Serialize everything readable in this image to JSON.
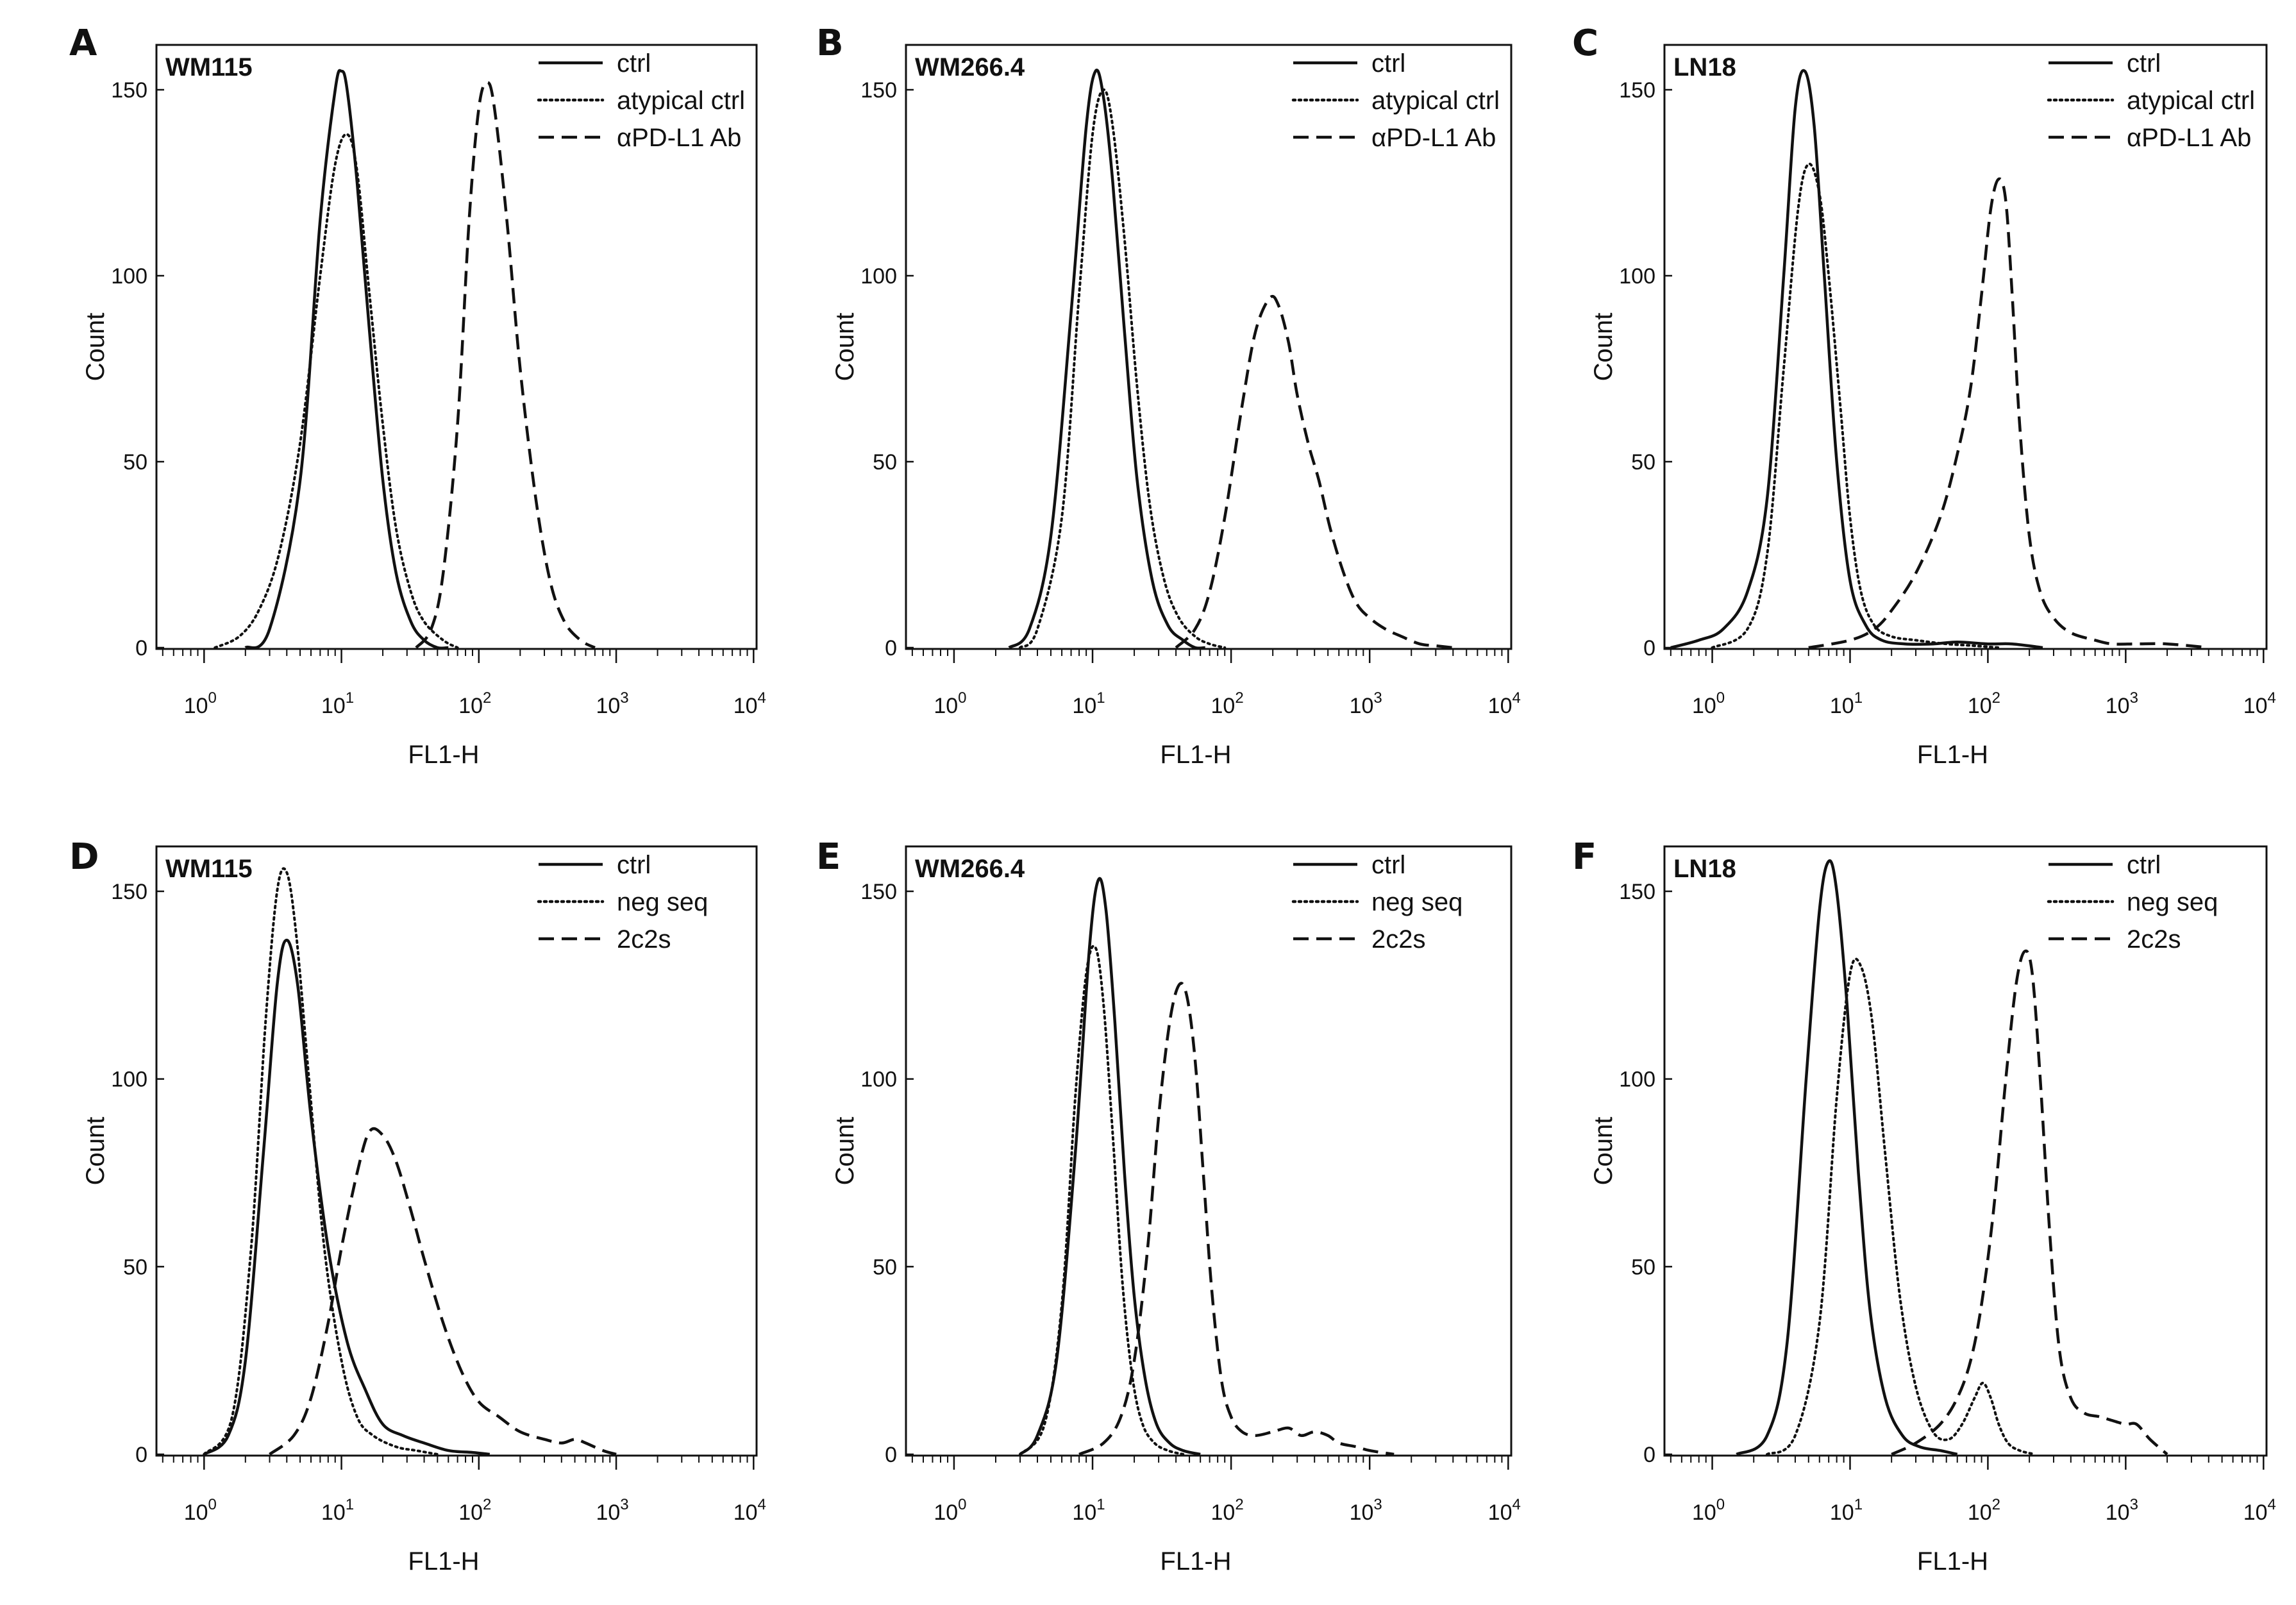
{
  "figure": {
    "axis_style": {
      "frame_color": "#111111",
      "curve_color": "#111111"
    }
  },
  "chart_data": [
    {
      "type": "line",
      "panel": "A",
      "title": "WM115",
      "xlabel": "FL1-H",
      "ylabel": "Count",
      "xscale": "log",
      "xlim": [
        0.45,
        10000
      ],
      "ylim": [
        0,
        165
      ],
      "x_ticks": [
        "10^0",
        "10^1",
        "10^2",
        "10^3",
        "10^4"
      ],
      "y_ticks": [
        0,
        50,
        100,
        150
      ],
      "legend_position": "top-right",
      "series": [
        {
          "name": "ctrl",
          "style": "solid",
          "x": [
            2,
            3,
            5,
            7,
            9,
            10,
            11,
            13,
            16,
            20,
            25,
            32,
            40,
            50,
            60
          ],
          "y": [
            0,
            5,
            45,
            115,
            150,
            155,
            150,
            125,
            85,
            45,
            20,
            7,
            2,
            0,
            0
          ]
        },
        {
          "name": "atypical ctrl",
          "style": "dotted",
          "x": [
            1.2,
            1.8,
            2.5,
            3.5,
            5,
            7,
            9,
            11,
            13,
            16,
            20,
            25,
            32,
            40,
            55,
            70
          ],
          "y": [
            0,
            3,
            10,
            25,
            55,
            100,
            130,
            138,
            128,
            95,
            60,
            32,
            15,
            7,
            2,
            0
          ]
        },
        {
          "name": "αPD-L1 Ab",
          "style": "dashed",
          "x": [
            35,
            45,
            55,
            70,
            85,
            100,
            115,
            130,
            160,
            200,
            260,
            330,
            420,
            550,
            700
          ],
          "y": [
            0,
            5,
            20,
            60,
            115,
            145,
            152,
            145,
            115,
            75,
            40,
            18,
            7,
            2,
            0
          ]
        }
      ],
      "layout_key": "A"
    },
    {
      "type": "line",
      "panel": "B",
      "title": "WM266.4",
      "xlabel": "FL1-H",
      "ylabel": "Count",
      "xscale": "log",
      "xlim": [
        0.45,
        10000
      ],
      "ylim": [
        0,
        165
      ],
      "x_ticks": [
        "10^0",
        "10^1",
        "10^2",
        "10^3",
        "10^4"
      ],
      "y_ticks": [
        0,
        50,
        100,
        150
      ],
      "legend_position": "top-right",
      "series": [
        {
          "name": "ctrl",
          "style": "solid",
          "x": [
            2.5,
            3.5,
            5,
            7,
            9,
            10.5,
            12,
            14,
            17,
            21,
            27,
            35,
            45,
            55,
            65
          ],
          "y": [
            0,
            5,
            30,
            90,
            140,
            155,
            148,
            125,
            85,
            45,
            18,
            6,
            2,
            0,
            0
          ]
        },
        {
          "name": "atypical ctrl",
          "style": "dotted",
          "x": [
            3,
            4,
            6,
            8,
            10,
            12,
            14,
            17,
            21,
            26,
            33,
            42,
            55,
            70,
            90
          ],
          "y": [
            0,
            5,
            35,
            95,
            138,
            150,
            140,
            110,
            70,
            38,
            18,
            8,
            3,
            1,
            0
          ]
        },
        {
          "name": "αPD-L1 Ab",
          "style": "dashed",
          "x": [
            40,
            55,
            70,
            90,
            120,
            150,
            190,
            220,
            260,
            300,
            360,
            430,
            520,
            650,
            800,
            1000,
            1300,
            1700,
            2300,
            3000,
            4000
          ],
          "y": [
            0,
            5,
            15,
            35,
            65,
            85,
            94,
            92,
            82,
            68,
            55,
            45,
            32,
            20,
            12,
            8,
            5,
            3,
            1,
            0.5,
            0
          ]
        }
      ],
      "layout_key": "B"
    },
    {
      "type": "line",
      "panel": "C",
      "title": "LN18",
      "xlabel": "FL1-H",
      "ylabel": "Count",
      "xscale": "log",
      "xlim": [
        0.45,
        10000
      ],
      "ylim": [
        0,
        165
      ],
      "x_ticks": [
        "10^0",
        "10^1",
        "10^2",
        "10^3",
        "10^4"
      ],
      "y_ticks": [
        0,
        50,
        100,
        150
      ],
      "legend_position": "top-right",
      "series": [
        {
          "name": "ctrl",
          "style": "solid",
          "x": [
            0.5,
            0.8,
            1.2,
            1.8,
            2.5,
            3.3,
            4,
            4.7,
            5.5,
            6.5,
            8,
            10,
            13,
            17,
            25,
            40,
            60,
            100,
            150,
            250
          ],
          "y": [
            0,
            2,
            5,
            15,
            40,
            100,
            145,
            155,
            140,
            100,
            50,
            18,
            6,
            2,
            1,
            1,
            1.5,
            1,
            1,
            0
          ]
        },
        {
          "name": "atypical ctrl",
          "style": "dotted",
          "x": [
            1,
            1.8,
            2.5,
            3.3,
            4.2,
            5,
            6,
            7,
            8.5,
            10,
            12,
            15,
            20,
            30,
            50,
            80,
            120
          ],
          "y": [
            0,
            5,
            25,
            75,
            118,
            130,
            122,
            100,
            65,
            35,
            15,
            6,
            3,
            2,
            1,
            0.5,
            0
          ]
        },
        {
          "name": "αPD-L1 Ab",
          "style": "dashed",
          "x": [
            5,
            10,
            15,
            20,
            30,
            45,
            60,
            75,
            90,
            105,
            120,
            135,
            150,
            170,
            200,
            240,
            300,
            400,
            600,
            800,
            1200,
            2000,
            4000
          ],
          "y": [
            0,
            2,
            5,
            10,
            20,
            35,
            52,
            70,
            95,
            118,
            126,
            120,
            95,
            60,
            30,
            15,
            8,
            4,
            2,
            1,
            1,
            1,
            0
          ]
        }
      ],
      "layout_key": "C"
    },
    {
      "type": "line",
      "panel": "D",
      "title": "WM115",
      "xlabel": "FL1-H",
      "ylabel": "Count",
      "xscale": "log",
      "xlim": [
        0.45,
        10000
      ],
      "ylim": [
        0,
        165
      ],
      "x_ticks": [
        "10^0",
        "10^1",
        "10^2",
        "10^3",
        "10^4"
      ],
      "y_ticks": [
        0,
        50,
        100,
        150
      ],
      "legend_position": "top-right",
      "series": [
        {
          "name": "ctrl",
          "style": "solid",
          "x": [
            1,
            1.5,
            2,
            2.7,
            3.4,
            4,
            4.8,
            6,
            8,
            11,
            15,
            20,
            28,
            40,
            60,
            90,
            120
          ],
          "y": [
            0,
            5,
            25,
            80,
            125,
            137,
            125,
            90,
            55,
            30,
            17,
            8,
            5,
            3,
            1,
            0.5,
            0
          ]
        },
        {
          "name": "neg seq",
          "style": "dotted",
          "x": [
            1,
            1.6,
            2.2,
            2.8,
            3.4,
            4,
            4.7,
            5.8,
            7.5,
            10,
            13,
            17,
            25,
            35,
            50
          ],
          "y": [
            0,
            10,
            55,
            115,
            150,
            155,
            138,
            100,
            55,
            25,
            10,
            5,
            2,
            1,
            0
          ]
        },
        {
          "name": "2c2s",
          "style": "dashed",
          "x": [
            3,
            4.5,
            6,
            8,
            10,
            13,
            16,
            20,
            25,
            32,
            40,
            55,
            75,
            100,
            140,
            200,
            300,
            400,
            500,
            600,
            800,
            1000
          ],
          "y": [
            0,
            5,
            15,
            35,
            55,
            75,
            86,
            85,
            78,
            65,
            52,
            35,
            22,
            14,
            10,
            6,
            4,
            3,
            4,
            3,
            1,
            0
          ]
        }
      ],
      "layout_key": "D"
    },
    {
      "type": "line",
      "panel": "E",
      "title": "WM266.4",
      "xlabel": "FL1-H",
      "ylabel": "Count",
      "xscale": "log",
      "xlim": [
        0.45,
        10000
      ],
      "ylim": [
        0,
        165
      ],
      "x_ticks": [
        "10^0",
        "10^1",
        "10^2",
        "10^3",
        "10^4"
      ],
      "y_ticks": [
        0,
        50,
        100,
        150
      ],
      "legend_position": "top-right",
      "series": [
        {
          "name": "ctrl",
          "style": "solid",
          "x": [
            3,
            4,
            5.5,
            7.5,
            9.5,
            11,
            12.5,
            14.5,
            17,
            20,
            24,
            29,
            36,
            45,
            60
          ],
          "y": [
            0,
            5,
            25,
            80,
            135,
            153,
            145,
            115,
            75,
            42,
            20,
            8,
            3,
            1,
            0
          ]
        },
        {
          "name": "neg seq",
          "style": "dotted",
          "x": [
            3,
            4.5,
            6,
            7.5,
            9,
            10.5,
            12,
            14,
            16.5,
            19.5,
            23,
            28,
            35,
            45
          ],
          "y": [
            0,
            8,
            40,
            95,
            128,
            135,
            120,
            85,
            45,
            20,
            8,
            3,
            1,
            0
          ]
        },
        {
          "name": "2c2s",
          "style": "dashed",
          "x": [
            8,
            12,
            16,
            20,
            25,
            30,
            36,
            42,
            48,
            55,
            63,
            72,
            85,
            100,
            120,
            150,
            200,
            260,
            320,
            400,
            500,
            600,
            800,
            1000,
            1500
          ],
          "y": [
            0,
            3,
            10,
            25,
            55,
            90,
            115,
            125,
            122,
            105,
            75,
            45,
            20,
            10,
            6,
            5,
            6,
            7,
            5,
            6,
            5,
            3,
            2,
            1,
            0
          ]
        }
      ],
      "layout_key": "E"
    },
    {
      "type": "line",
      "panel": "F",
      "title": "LN18",
      "xlabel": "FL1-H",
      "ylabel": "Count",
      "xscale": "log",
      "xlim": [
        0.45,
        10000
      ],
      "ylim": [
        0,
        165
      ],
      "x_ticks": [
        "10^0",
        "10^1",
        "10^2",
        "10^3",
        "10^4"
      ],
      "y_ticks": [
        0,
        50,
        100,
        150
      ],
      "legend_position": "top-right",
      "series": [
        {
          "name": "ctrl",
          "style": "solid",
          "x": [
            1.5,
            2.5,
            3.5,
            4.8,
            6,
            7,
            8,
            9.5,
            11.5,
            14,
            18,
            24,
            32,
            45,
            60
          ],
          "y": [
            0,
            5,
            30,
            100,
            145,
            158,
            150,
            120,
            75,
            38,
            15,
            5,
            2,
            1,
            0
          ]
        },
        {
          "name": "neg seq",
          "style": "dotted",
          "x": [
            2.5,
            4,
            6,
            8,
            10,
            12,
            14.5,
            18,
            23,
            30,
            40,
            52,
            65,
            80,
            92,
            105,
            120,
            140,
            170,
            220
          ],
          "y": [
            0,
            5,
            35,
            95,
            128,
            130,
            115,
            80,
            42,
            18,
            6,
            4,
            8,
            15,
            19,
            15,
            8,
            3,
            1,
            0
          ]
        },
        {
          "name": "2c2s",
          "style": "dashed",
          "x": [
            20,
            30,
            45,
            60,
            75,
            90,
            110,
            135,
            160,
            185,
            210,
            240,
            280,
            330,
            400,
            500,
            650,
            800,
            1000,
            1200,
            1500,
            2000
          ],
          "y": [
            0,
            3,
            8,
            15,
            25,
            40,
            65,
            100,
            125,
            134,
            128,
            100,
            60,
            28,
            15,
            11,
            10,
            9,
            8,
            8,
            4,
            0
          ]
        }
      ],
      "layout_key": "F"
    }
  ]
}
